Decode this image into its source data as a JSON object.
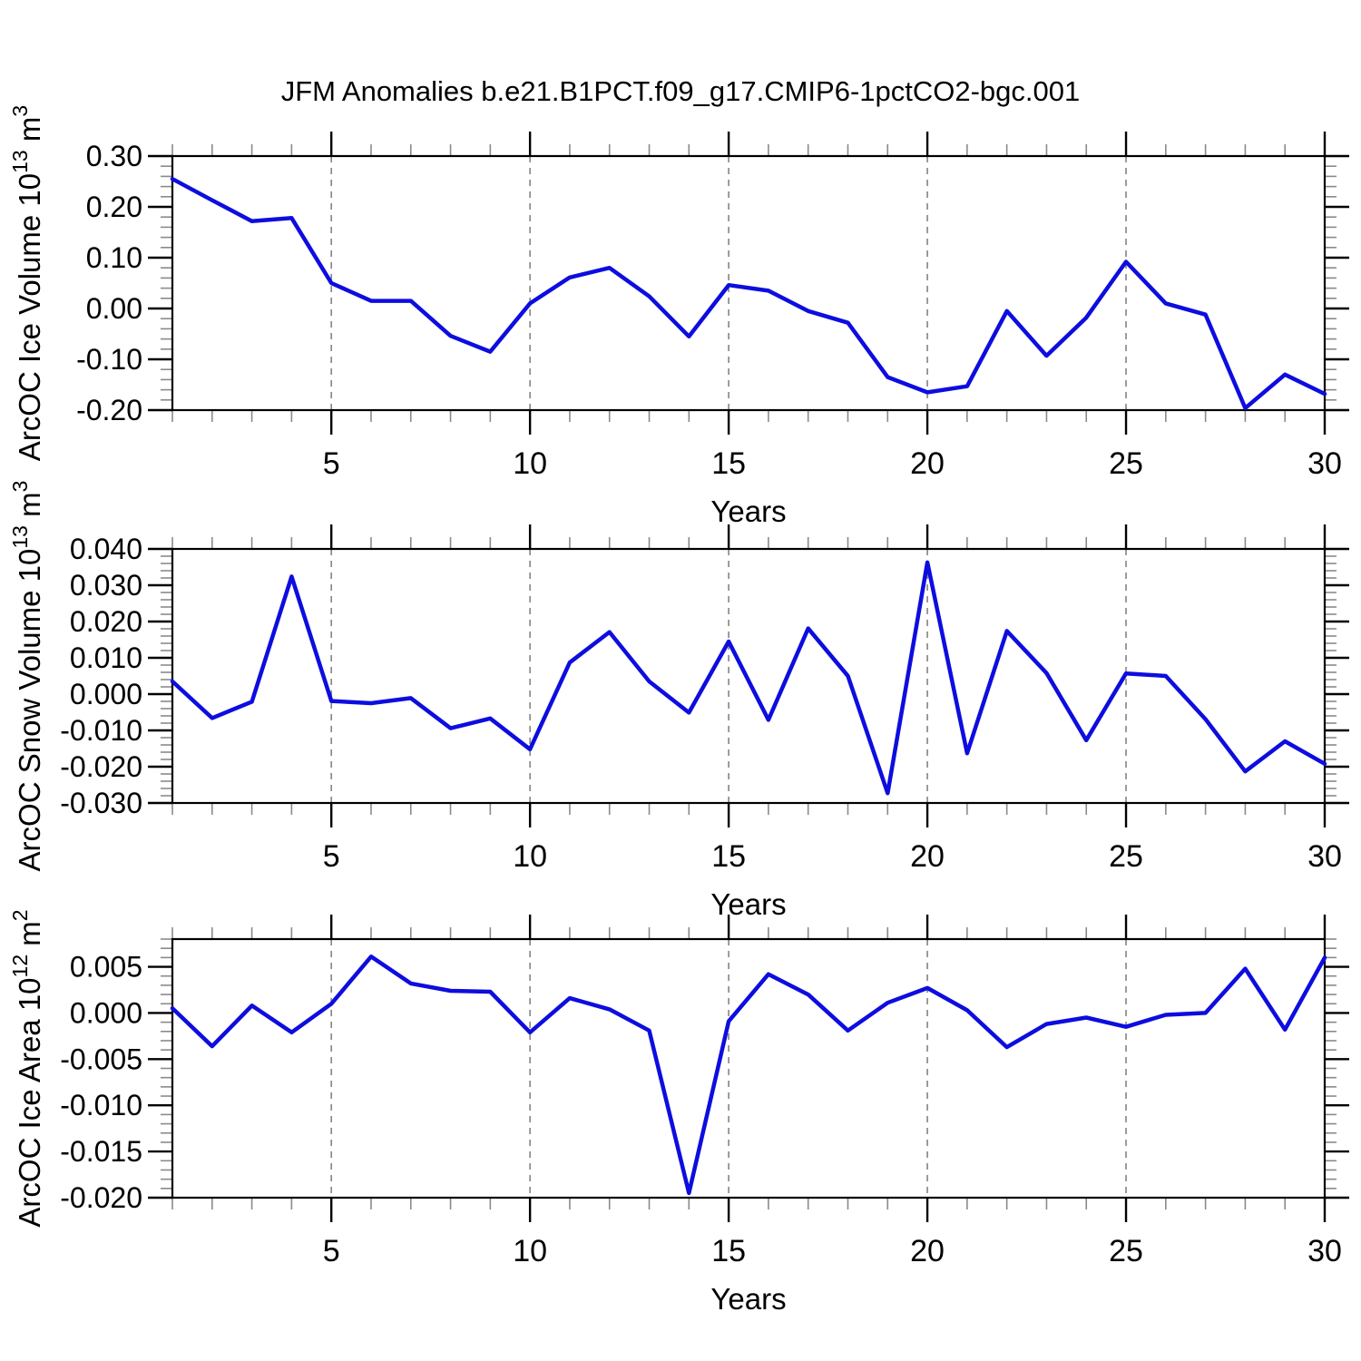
{
  "page": {
    "title": "JFM Anomalies b.e21.B1PCT.f09_g17.CMIP6-1pctCO2-bgc.001",
    "background": "#ffffff"
  },
  "colors": {
    "line": "#0d0ddf",
    "axis": "#000000",
    "minor_tick": "#8a8a8a",
    "gridline": "#848484",
    "text": "#000000"
  },
  "chart_data": [
    {
      "type": "line",
      "name": "ice-volume-chart",
      "ylabel_text": "ArcOC Ice Volume 10^13 m^3",
      "ylabel_parts": [
        {
          "text": "ArcOC Ice Volume 10"
        },
        {
          "text": "13",
          "sup": true
        },
        {
          "text": " m"
        },
        {
          "text": "3",
          "sup": true
        }
      ],
      "xlabel": "Years",
      "xlim": [
        1,
        30
      ],
      "ylim": [
        -0.2,
        0.3
      ],
      "yticks": [
        0.3,
        0.2,
        0.1,
        0.0,
        -0.1,
        -0.2
      ],
      "ytick_labels": [
        "0.30",
        "0.20",
        "0.10",
        "0.00",
        "-0.10",
        "-0.20"
      ],
      "yminor_step": 0.02,
      "xticks": [
        5,
        10,
        15,
        20,
        25,
        30
      ],
      "xtick_labels": [
        "5",
        "10",
        "15",
        "20",
        "25",
        "30"
      ],
      "gridlines_x": [
        5,
        10,
        15,
        20,
        25
      ],
      "grid": "vertical-dashed",
      "legend": "none",
      "x": [
        1,
        2,
        3,
        4,
        5,
        6,
        7,
        8,
        9,
        10,
        11,
        12,
        13,
        14,
        15,
        16,
        17,
        18,
        19,
        20,
        21,
        22,
        23,
        24,
        25,
        26,
        27,
        28,
        29,
        30
      ],
      "values": [
        0.255,
        0.213,
        0.172,
        0.178,
        0.05,
        0.015,
        0.015,
        -0.054,
        -0.085,
        0.01,
        0.061,
        0.08,
        0.024,
        -0.055,
        0.046,
        0.035,
        -0.005,
        -0.028,
        -0.135,
        -0.165,
        -0.153,
        -0.005,
        -0.093,
        -0.018,
        0.092,
        0.01,
        -0.012,
        -0.196,
        -0.13,
        -0.168
      ]
    },
    {
      "type": "line",
      "name": "snow-volume-chart",
      "ylabel_text": "ArcOC Snow Volume 10^13 m^3",
      "ylabel_parts": [
        {
          "text": "ArcOC Snow Volume 10"
        },
        {
          "text": "13",
          "sup": true
        },
        {
          "text": " m"
        },
        {
          "text": "3",
          "sup": true
        }
      ],
      "xlabel": "Years",
      "xlim": [
        1,
        30
      ],
      "ylim": [
        -0.03,
        0.04
      ],
      "yticks": [
        0.04,
        0.03,
        0.02,
        0.01,
        0.0,
        -0.01,
        -0.02,
        -0.03
      ],
      "ytick_labels": [
        "0.040",
        "0.030",
        "0.020",
        "0.010",
        "0.000",
        "-0.010",
        "-0.020",
        "-0.030"
      ],
      "yminor_step": 0.002,
      "xticks": [
        5,
        10,
        15,
        20,
        25,
        30
      ],
      "xtick_labels": [
        "5",
        "10",
        "15",
        "20",
        "25",
        "30"
      ],
      "gridlines_x": [
        5,
        10,
        15,
        20,
        25
      ],
      "grid": "vertical-dashed",
      "legend": "none",
      "x": [
        1,
        2,
        3,
        4,
        5,
        6,
        7,
        8,
        9,
        10,
        11,
        12,
        13,
        14,
        15,
        16,
        17,
        18,
        19,
        20,
        21,
        22,
        23,
        24,
        25,
        26,
        27,
        28,
        29,
        30
      ],
      "values": [
        0.0035,
        -0.0066,
        -0.0021,
        0.0324,
        -0.0019,
        -0.0025,
        -0.0011,
        -0.0094,
        -0.0067,
        -0.0152,
        0.0087,
        0.0171,
        0.0035,
        -0.0051,
        0.0145,
        -0.0071,
        0.0181,
        0.005,
        -0.0273,
        0.0363,
        -0.0163,
        0.0174,
        0.0058,
        -0.0127,
        0.0057,
        0.005,
        -0.0069,
        -0.0213,
        -0.013,
        -0.0192
      ]
    },
    {
      "type": "line",
      "name": "ice-area-chart",
      "ylabel_text": "ArcOC Ice Area 10^12 m^2",
      "ylabel_parts": [
        {
          "text": "ArcOC Ice Area 10"
        },
        {
          "text": "12",
          "sup": true
        },
        {
          "text": " m"
        },
        {
          "text": "2",
          "sup": true
        }
      ],
      "xlabel": "Years",
      "xlim": [
        1,
        30
      ],
      "ylim": [
        -0.02,
        0.008
      ],
      "yticks": [
        0.005,
        0.0,
        -0.005,
        -0.01,
        -0.015,
        -0.02
      ],
      "ytick_labels": [
        "0.005",
        "0.000",
        "-0.005",
        "-0.010",
        "-0.015",
        "-0.020"
      ],
      "yminor_step": 0.001,
      "xticks": [
        5,
        10,
        15,
        20,
        25,
        30
      ],
      "xtick_labels": [
        "5",
        "10",
        "15",
        "20",
        "25",
        "30"
      ],
      "gridlines_x": [
        5,
        10,
        15,
        20,
        25
      ],
      "grid": "vertical-dashed",
      "legend": "none",
      "x": [
        1,
        2,
        3,
        4,
        5,
        6,
        7,
        8,
        9,
        10,
        11,
        12,
        13,
        14,
        15,
        16,
        17,
        18,
        19,
        20,
        21,
        22,
        23,
        24,
        25,
        26,
        27,
        28,
        29,
        30
      ],
      "values": [
        0.0005,
        -0.0036,
        0.0008,
        -0.0021,
        0.001,
        0.0061,
        0.0032,
        0.0024,
        0.0023,
        -0.0021,
        0.0016,
        0.0004,
        -0.0019,
        -0.0195,
        -0.0009,
        0.0042,
        0.002,
        -0.0019,
        0.0011,
        0.0027,
        0.0003,
        -0.0037,
        -0.0012,
        -0.0005,
        -0.0015,
        -0.0002,
        0.0,
        0.0048,
        -0.0018,
        0.006
      ]
    }
  ]
}
